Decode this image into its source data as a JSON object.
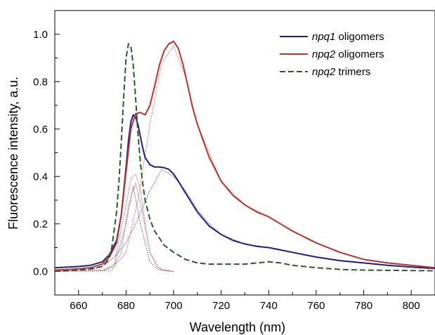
{
  "chart_data": {
    "type": "line",
    "title": "",
    "xlabel": "Wavelength (nm)",
    "ylabel": "Fluorescence intensity, a.u.",
    "xlim": [
      650,
      810
    ],
    "ylim": [
      -0.1,
      1.1
    ],
    "x_ticks": [
      "660",
      "680",
      "700",
      "720",
      "740",
      "760",
      "780",
      "800"
    ],
    "y_ticks": [
      "0.0",
      "0.2",
      "0.4",
      "0.6",
      "0.8",
      "1.0"
    ],
    "grid": false,
    "legend_position": "top-right",
    "colors": {
      "npq1": "#1c1c8c",
      "npq2": "#c0302c",
      "trimers": "#2a5a2a"
    },
    "series": [
      {
        "key": "npq1",
        "name_italic": "npq1",
        "name_rest": " oligomers",
        "style": "solid",
        "x": [
          650,
          660,
          665,
          670,
          673,
          676,
          678,
          680,
          681,
          682,
          683,
          684,
          685,
          686,
          687,
          688,
          690,
          692,
          694,
          696,
          698,
          700,
          702,
          705,
          710,
          715,
          720,
          725,
          730,
          735,
          740,
          745,
          750,
          760,
          770,
          780,
          790,
          800,
          810
        ],
        "y": [
          0.015,
          0.02,
          0.025,
          0.04,
          0.07,
          0.13,
          0.24,
          0.44,
          0.55,
          0.63,
          0.66,
          0.65,
          0.62,
          0.57,
          0.52,
          0.48,
          0.45,
          0.44,
          0.44,
          0.437,
          0.43,
          0.41,
          0.38,
          0.33,
          0.25,
          0.19,
          0.155,
          0.13,
          0.115,
          0.105,
          0.1,
          0.09,
          0.08,
          0.06,
          0.045,
          0.035,
          0.025,
          0.018,
          0.012
        ]
      },
      {
        "key": "npq2",
        "name_italic": "npq2",
        "name_rest": " oligomers",
        "style": "solid",
        "x": [
          650,
          660,
          665,
          670,
          673,
          676,
          678,
          680,
          682,
          684,
          686,
          688,
          690,
          692,
          694,
          696,
          698,
          700,
          702,
          704,
          706,
          708,
          710,
          715,
          720,
          725,
          730,
          735,
          740,
          745,
          750,
          760,
          770,
          780,
          790,
          800,
          810
        ],
        "y": [
          0.005,
          0.01,
          0.015,
          0.03,
          0.06,
          0.12,
          0.24,
          0.42,
          0.6,
          0.665,
          0.67,
          0.66,
          0.7,
          0.78,
          0.87,
          0.93,
          0.96,
          0.97,
          0.94,
          0.87,
          0.78,
          0.69,
          0.62,
          0.48,
          0.38,
          0.32,
          0.28,
          0.25,
          0.23,
          0.2,
          0.17,
          0.12,
          0.08,
          0.05,
          0.035,
          0.025,
          0.015
        ]
      },
      {
        "key": "trimers",
        "name_italic": "npq2",
        "name_rest": " trimers",
        "style": "dashed",
        "x": [
          650,
          660,
          665,
          670,
          672,
          674,
          676,
          677,
          678,
          679,
          680,
          681,
          682,
          683,
          684,
          685,
          686,
          687,
          688,
          690,
          692,
          694,
          696,
          700,
          705,
          710,
          715,
          720,
          725,
          730,
          735,
          740,
          745,
          750,
          760,
          770,
          780,
          790,
          800,
          810
        ],
        "y": [
          0.0,
          0.005,
          0.01,
          0.02,
          0.04,
          0.1,
          0.25,
          0.38,
          0.55,
          0.74,
          0.9,
          0.96,
          0.95,
          0.87,
          0.73,
          0.58,
          0.46,
          0.37,
          0.3,
          0.22,
          0.17,
          0.14,
          0.11,
          0.08,
          0.05,
          0.035,
          0.03,
          0.03,
          0.03,
          0.03,
          0.035,
          0.04,
          0.035,
          0.025,
          0.015,
          0.008,
          0.005,
          0.004,
          0.003,
          0.002
        ]
      }
    ],
    "fit_components": [
      {
        "color": "#1c1c8c",
        "x": [
          650,
          670,
          675,
          680,
          683,
          686,
          690,
          693,
          696,
          700
        ],
        "y": [
          0,
          0.002,
          0.02,
          0.2,
          0.36,
          0.2,
          0.04,
          0.01,
          0.002,
          0
        ]
      },
      {
        "color": "#1c1c8c",
        "x": [
          650,
          665,
          670,
          675,
          680,
          685,
          690,
          695,
          700,
          705,
          710,
          715,
          720,
          730,
          740,
          750,
          760,
          770,
          780,
          790,
          800,
          810
        ],
        "y": [
          0,
          0.005,
          0.02,
          0.06,
          0.12,
          0.22,
          0.34,
          0.43,
          0.4,
          0.34,
          0.26,
          0.2,
          0.155,
          0.115,
          0.1,
          0.08,
          0.06,
          0.045,
          0.035,
          0.025,
          0.018,
          0.012
        ]
      },
      {
        "color": "#c0302c",
        "x": [
          650,
          670,
          675,
          680,
          682,
          684,
          686,
          688,
          690,
          693,
          696,
          700
        ],
        "y": [
          0,
          0.002,
          0.03,
          0.28,
          0.39,
          0.41,
          0.35,
          0.2,
          0.08,
          0.02,
          0.004,
          0
        ]
      },
      {
        "color": "#c0302c",
        "x": [
          650,
          670,
          675,
          680,
          685,
          690,
          695,
          700,
          705,
          710,
          720,
          730,
          740,
          750,
          760,
          770,
          780,
          790,
          800,
          810
        ],
        "y": [
          0,
          0.005,
          0.02,
          0.08,
          0.3,
          0.62,
          0.88,
          0.95,
          0.82,
          0.62,
          0.38,
          0.28,
          0.23,
          0.17,
          0.12,
          0.08,
          0.05,
          0.035,
          0.025,
          0.015
        ]
      },
      {
        "color": "#c0302c",
        "x": [
          650,
          674,
          678,
          681,
          684,
          687,
          690,
          694,
          700
        ],
        "y": [
          0,
          0.002,
          0.08,
          0.28,
          0.37,
          0.24,
          0.08,
          0.01,
          0
        ]
      }
    ]
  }
}
